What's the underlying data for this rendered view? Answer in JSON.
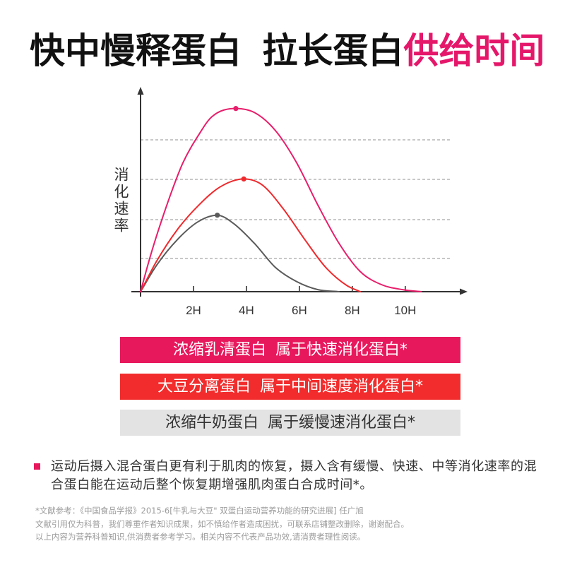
{
  "header": {
    "title_main": "快中慢释蛋白 拉长蛋白",
    "title_highlight": "供给时间",
    "title_color": "#111111",
    "highlight_color": "#e5176b"
  },
  "chart_data": {
    "type": "line",
    "ylabel": "消化速率",
    "x_ticks": [
      "2H",
      "4H",
      "6H",
      "8H",
      "10H"
    ],
    "x_tick_values": [
      2,
      4,
      6,
      8,
      10
    ],
    "xlim": [
      0,
      12.3
    ],
    "ylim": [
      0,
      100
    ],
    "grid": true,
    "legend": "below",
    "series": [
      {
        "legend_label": "浓缩乳清蛋白 属于快速消化蛋白*",
        "color": "#e81e6b",
        "legend_bg": "#e8185d",
        "legend_fg": "#ffffff",
        "peak_marker": true,
        "points": [
          [
            0,
            0
          ],
          [
            0.4,
            19
          ],
          [
            1.1,
            47
          ],
          [
            1.6,
            64
          ],
          [
            2.2,
            78
          ],
          [
            2.7,
            87
          ],
          [
            3.6,
            91
          ],
          [
            4.3,
            89
          ],
          [
            5.1,
            80
          ],
          [
            5.9,
            64
          ],
          [
            6.7,
            43
          ],
          [
            7.5,
            24
          ],
          [
            8.3,
            10
          ],
          [
            9.1,
            3.5
          ],
          [
            9.9,
            1
          ],
          [
            10.6,
            0
          ]
        ]
      },
      {
        "legend_label": "大豆分离蛋白 属于中间速度消化蛋白*",
        "color": "#ef2a2d",
        "legend_bg": "#f22c2c",
        "legend_fg": "#ffffff",
        "peak_marker": true,
        "points": [
          [
            0,
            0
          ],
          [
            0.6,
            15
          ],
          [
            1.4,
            31
          ],
          [
            2.2,
            43
          ],
          [
            3.0,
            52
          ],
          [
            3.9,
            56
          ],
          [
            4.6,
            53
          ],
          [
            5.4,
            41
          ],
          [
            6.2,
            26
          ],
          [
            7.0,
            12
          ],
          [
            7.8,
            3
          ],
          [
            8.3,
            0
          ]
        ]
      },
      {
        "legend_label": "浓缩牛奶蛋白 属于缓慢速消化蛋白*",
        "color": "#5a5a5a",
        "legend_bg": "#e3e3e3",
        "legend_fg": "#333333",
        "peak_marker": true,
        "points": [
          [
            0,
            0
          ],
          [
            0.6,
            13
          ],
          [
            1.4,
            26
          ],
          [
            2.2,
            35
          ],
          [
            2.9,
            38
          ],
          [
            3.5,
            34
          ],
          [
            4.3,
            24
          ],
          [
            5.1,
            12
          ],
          [
            5.9,
            5
          ],
          [
            6.7,
            1
          ],
          [
            7.5,
            0
          ]
        ]
      }
    ]
  },
  "note": {
    "bullet_color": "#e8185d",
    "lines": [
      "运动后摄入混合蛋白更有利于肌肉的恢复，摄入含有缓慢、快速、中等消化速率的混",
      "合蛋白能在运动后整个恢复期增强肌肉蛋白合成时间*。"
    ]
  },
  "footnote": {
    "lines": [
      "*文献参考：《中国食品学报》2015-6[牛乳与大豆\" 双蛋白运动营养功能的研究进展] 任广旭",
      "文献引用仅为科普，我们尊重作者知识成果，如不慎给作者造成困扰，可联系店铺整改删除，谢谢配合。",
      "以上内容为营养科普知识,供消费者参考学习。相关内容不代表产品功效,请消费者理性阅读。"
    ]
  }
}
